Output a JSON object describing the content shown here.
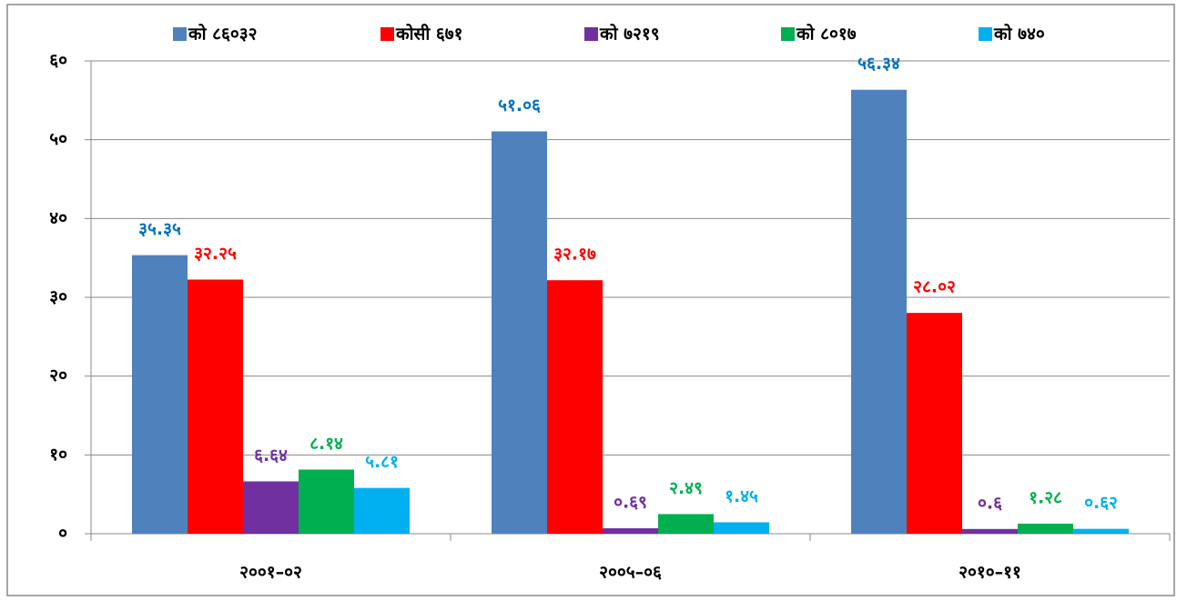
{
  "chart_data": {
    "type": "bar",
    "categories": [
      "२००१–०२",
      "२००५–०६",
      "२०१०–११"
    ],
    "series": [
      {
        "name": "को ८६०३२",
        "color": "#4f81bd",
        "values": [
          35.35,
          51.06,
          56.34
        ],
        "value_labels": [
          "३५.३५",
          "५१.०६",
          "५६.३४"
        ]
      },
      {
        "name": "कोसी ६७१",
        "color": "#ff0000",
        "values": [
          32.25,
          32.17,
          28.02
        ],
        "value_labels": [
          "३२.२५",
          "३२.१७",
          "२८.०२"
        ]
      },
      {
        "name": "को ७२१९",
        "color": "#7030a0",
        "values": [
          6.64,
          0.69,
          0.6
        ],
        "value_labels": [
          "६.६४",
          "०.६९",
          "०.६"
        ]
      },
      {
        "name": "को ८०१७",
        "color": "#00b050",
        "values": [
          8.14,
          2.49,
          1.28
        ],
        "value_labels": [
          "८.१४",
          "२.४९",
          "१.२८"
        ]
      },
      {
        "name": "को ७४०",
        "color": "#00b0f0",
        "values": [
          5.81,
          1.45,
          0.62
        ],
        "value_labels": [
          "५.८१",
          "१.४५",
          "०.६२"
        ]
      }
    ],
    "ylim": [
      0,
      60
    ],
    "yticks": [
      {
        "value": 0,
        "label": "०"
      },
      {
        "value": 10,
        "label": "१०"
      },
      {
        "value": 20,
        "label": "२०"
      },
      {
        "value": 30,
        "label": "३०"
      },
      {
        "value": 40,
        "label": "४०"
      },
      {
        "value": 50,
        "label": "५०"
      },
      {
        "value": 60,
        "label": "६०"
      }
    ],
    "grid": true,
    "legend": "top"
  }
}
